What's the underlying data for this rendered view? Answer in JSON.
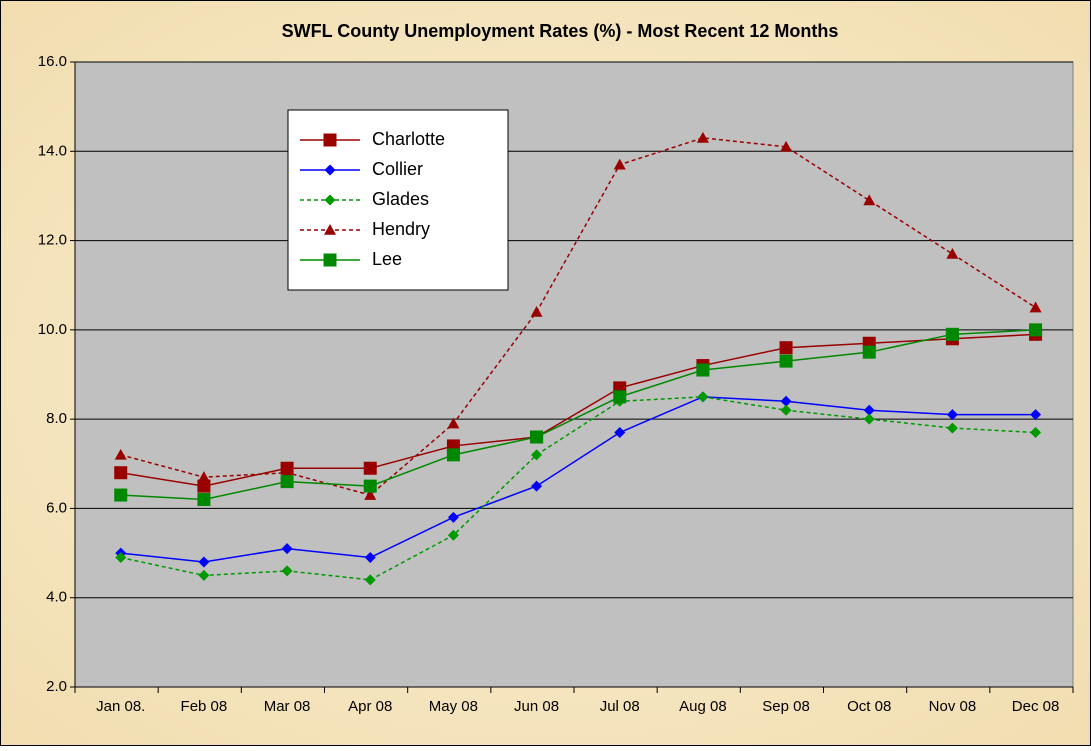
{
  "chart_data": {
    "type": "line",
    "title": "SWFL County  Unemployment Rates (%)  - Most Recent  12 Months",
    "categories": [
      "Jan 08.",
      "Feb 08",
      "Mar 08",
      "Apr 08",
      "May 08",
      "Jun 08",
      "Jul 08",
      "Aug 08",
      "Sep 08",
      "Oct 08",
      "Nov 08",
      "Dec 08"
    ],
    "series": [
      {
        "name": "Charlotte",
        "color": "#990000",
        "marker": "square",
        "dash": false,
        "values": [
          6.8,
          6.5,
          6.9,
          6.9,
          7.4,
          7.6,
          8.7,
          9.2,
          9.6,
          9.7,
          9.8,
          9.9
        ]
      },
      {
        "name": "Collier",
        "color": "#0000ff",
        "marker": "diamond",
        "dash": false,
        "values": [
          5.0,
          4.8,
          5.1,
          4.9,
          5.8,
          6.5,
          7.7,
          8.5,
          8.4,
          8.2,
          8.1,
          8.1
        ]
      },
      {
        "name": "Glades",
        "color": "#009900",
        "marker": "diamond",
        "dash": true,
        "values": [
          4.9,
          4.5,
          4.6,
          4.4,
          5.4,
          7.2,
          8.4,
          8.5,
          8.2,
          8.0,
          7.8,
          7.7
        ]
      },
      {
        "name": "Hendry",
        "color": "#990000",
        "marker": "triangle",
        "dash": true,
        "values": [
          7.2,
          6.7,
          6.8,
          6.3,
          7.9,
          10.4,
          13.7,
          14.3,
          14.1,
          12.9,
          11.7,
          10.5
        ]
      },
      {
        "name": "Lee",
        "color": "#008800",
        "marker": "square",
        "dash": false,
        "values": [
          6.3,
          6.2,
          6.6,
          6.5,
          7.2,
          7.6,
          8.5,
          9.1,
          9.3,
          9.5,
          9.9,
          10.0
        ]
      }
    ],
    "ylim": [
      2,
      16
    ],
    "yticks": [
      {
        "value": 2,
        "label": "2.0"
      },
      {
        "value": 4,
        "label": "4.0"
      },
      {
        "value": 6,
        "label": "6.0"
      },
      {
        "value": 8,
        "label": "8.0"
      },
      {
        "value": 10,
        "label": "10.0"
      },
      {
        "value": 12,
        "label": "12.0"
      },
      {
        "value": 14,
        "label": "14.0"
      },
      {
        "value": 16,
        "label": "16.0"
      }
    ],
    "grid": true,
    "legend": "upper left"
  }
}
